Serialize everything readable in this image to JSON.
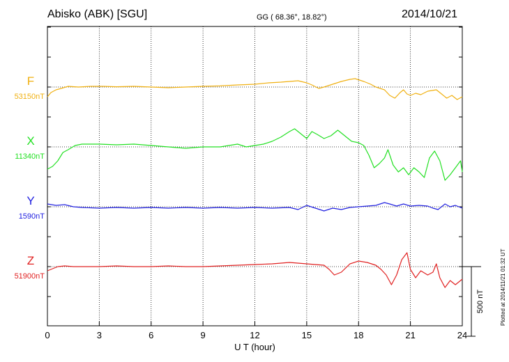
{
  "header": {
    "station": "Abisko (ABK)  [SGU]",
    "coords": "GG ( 68.36°,  18.82°)",
    "date": "2014/10/21"
  },
  "footer_note": "Plotted at 2014/11/21 01:32 UT",
  "chart_data": {
    "type": "line",
    "title": "Abisko (ABK)  [SGU]",
    "xlabel": "U T (hour)",
    "xlim": [
      0,
      24
    ],
    "xticks": [
      0,
      3,
      6,
      9,
      12,
      15,
      18,
      21,
      24
    ],
    "xticklabels": [
      "0",
      "3",
      "6",
      "9",
      "12",
      "15",
      "18",
      "21",
      "24"
    ],
    "grid": true,
    "scale_bar": {
      "label": "500 nT",
      "value_nT": 500
    },
    "series": [
      {
        "name": "F",
        "baseline_label": "53150nT",
        "baseline_nT": 53150,
        "color": "#f0b010",
        "x": [
          0,
          0.2,
          0.5,
          0.8,
          1.2,
          1.8,
          2.5,
          3.2,
          4.0,
          5.0,
          6.0,
          7.0,
          8.0,
          9.0,
          10.0,
          11.0,
          12.0,
          12.8,
          13.5,
          14.0,
          14.5,
          15.0,
          15.3,
          15.7,
          16.0,
          16.5,
          17.0,
          17.5,
          17.8,
          18.3,
          18.7,
          19.0,
          19.5,
          19.8,
          20.1,
          20.4,
          20.6,
          20.8,
          21.0,
          21.3,
          21.6,
          22.0,
          22.5,
          22.8,
          23.1,
          23.4,
          23.7,
          24.0
        ],
        "y": [
          -70,
          -40,
          -20,
          -10,
          5,
          0,
          5,
          5,
          2,
          5,
          0,
          -5,
          0,
          5,
          8,
          15,
          20,
          30,
          35,
          40,
          45,
          30,
          15,
          -10,
          0,
          20,
          40,
          55,
          60,
          40,
          20,
          0,
          -20,
          -60,
          -80,
          -40,
          -20,
          -50,
          -60,
          -45,
          -55,
          -30,
          -20,
          -50,
          -80,
          -60,
          -90,
          -70
        ]
      },
      {
        "name": "X",
        "baseline_label": "11340nT",
        "baseline_nT": 11340,
        "color": "#22e022",
        "x": [
          0,
          0.3,
          0.6,
          0.9,
          1.2,
          1.6,
          2.0,
          3.0,
          4.0,
          5.0,
          6.0,
          7.0,
          8.0,
          9.0,
          10.0,
          10.5,
          11.0,
          11.5,
          12.0,
          12.5,
          13.0,
          13.5,
          14.0,
          14.3,
          14.6,
          15.0,
          15.3,
          15.6,
          16.0,
          16.4,
          16.8,
          17.2,
          17.6,
          18.0,
          18.3,
          18.6,
          18.9,
          19.2,
          19.5,
          19.7,
          20.0,
          20.3,
          20.6,
          20.9,
          21.2,
          21.5,
          21.8,
          22.1,
          22.4,
          22.7,
          23.0,
          23.3,
          23.6,
          23.9,
          24.0
        ],
        "y": [
          -160,
          -140,
          -100,
          -40,
          -20,
          10,
          20,
          20,
          15,
          20,
          10,
          0,
          -10,
          0,
          0,
          10,
          20,
          0,
          10,
          20,
          40,
          70,
          110,
          130,
          100,
          60,
          110,
          90,
          60,
          80,
          120,
          80,
          40,
          30,
          10,
          -60,
          -150,
          -120,
          -80,
          -20,
          -130,
          -180,
          -150,
          -200,
          -150,
          -180,
          -220,
          -80,
          -30,
          -100,
          -240,
          -200,
          -150,
          -100,
          -180
        ]
      },
      {
        "name": "Y",
        "baseline_label": "1590nT",
        "baseline_nT": 1590,
        "color": "#2020e0",
        "x": [
          0,
          0.5,
          1.0,
          1.5,
          2.0,
          3.0,
          4.0,
          5.0,
          6.0,
          7.0,
          8.0,
          9.0,
          10.0,
          11.0,
          12.0,
          13.0,
          14.0,
          14.5,
          15.0,
          15.5,
          16.0,
          16.5,
          17.0,
          17.5,
          18.0,
          18.5,
          19.0,
          19.5,
          19.8,
          20.2,
          20.6,
          21.0,
          21.5,
          22.0,
          22.3,
          22.6,
          23.0,
          23.3,
          23.6,
          24.0
        ],
        "y": [
          20,
          10,
          15,
          0,
          -5,
          -10,
          -5,
          -10,
          -5,
          -10,
          -5,
          -10,
          -5,
          -10,
          -5,
          -10,
          -5,
          -20,
          10,
          -10,
          -30,
          -10,
          -20,
          -5,
          0,
          5,
          10,
          30,
          20,
          5,
          20,
          5,
          10,
          5,
          -10,
          -20,
          20,
          0,
          10,
          -10
        ]
      },
      {
        "name": "Z",
        "baseline_label": "51900nT",
        "baseline_nT": 51900,
        "color": "#e02020",
        "x": [
          0,
          0.3,
          0.6,
          1.0,
          1.5,
          2.0,
          3.0,
          4.0,
          5.0,
          6.0,
          7.0,
          8.0,
          9.0,
          10.0,
          11.0,
          12.0,
          13.0,
          14.0,
          15.0,
          15.5,
          16.0,
          16.3,
          16.6,
          17.0,
          17.5,
          18.0,
          18.5,
          19.0,
          19.3,
          19.6,
          19.9,
          20.2,
          20.5,
          20.8,
          21.0,
          21.3,
          21.6,
          22.0,
          22.3,
          22.5,
          22.7,
          23.0,
          23.3,
          23.6,
          24.0
        ],
        "y": [
          -30,
          -15,
          0,
          5,
          0,
          0,
          0,
          5,
          0,
          0,
          5,
          0,
          0,
          5,
          10,
          15,
          20,
          30,
          20,
          15,
          10,
          -20,
          -60,
          -40,
          20,
          40,
          30,
          10,
          -20,
          -60,
          -130,
          -60,
          50,
          100,
          -20,
          -80,
          -30,
          -60,
          -40,
          20,
          -80,
          -150,
          -100,
          -130,
          -90
        ]
      }
    ]
  }
}
